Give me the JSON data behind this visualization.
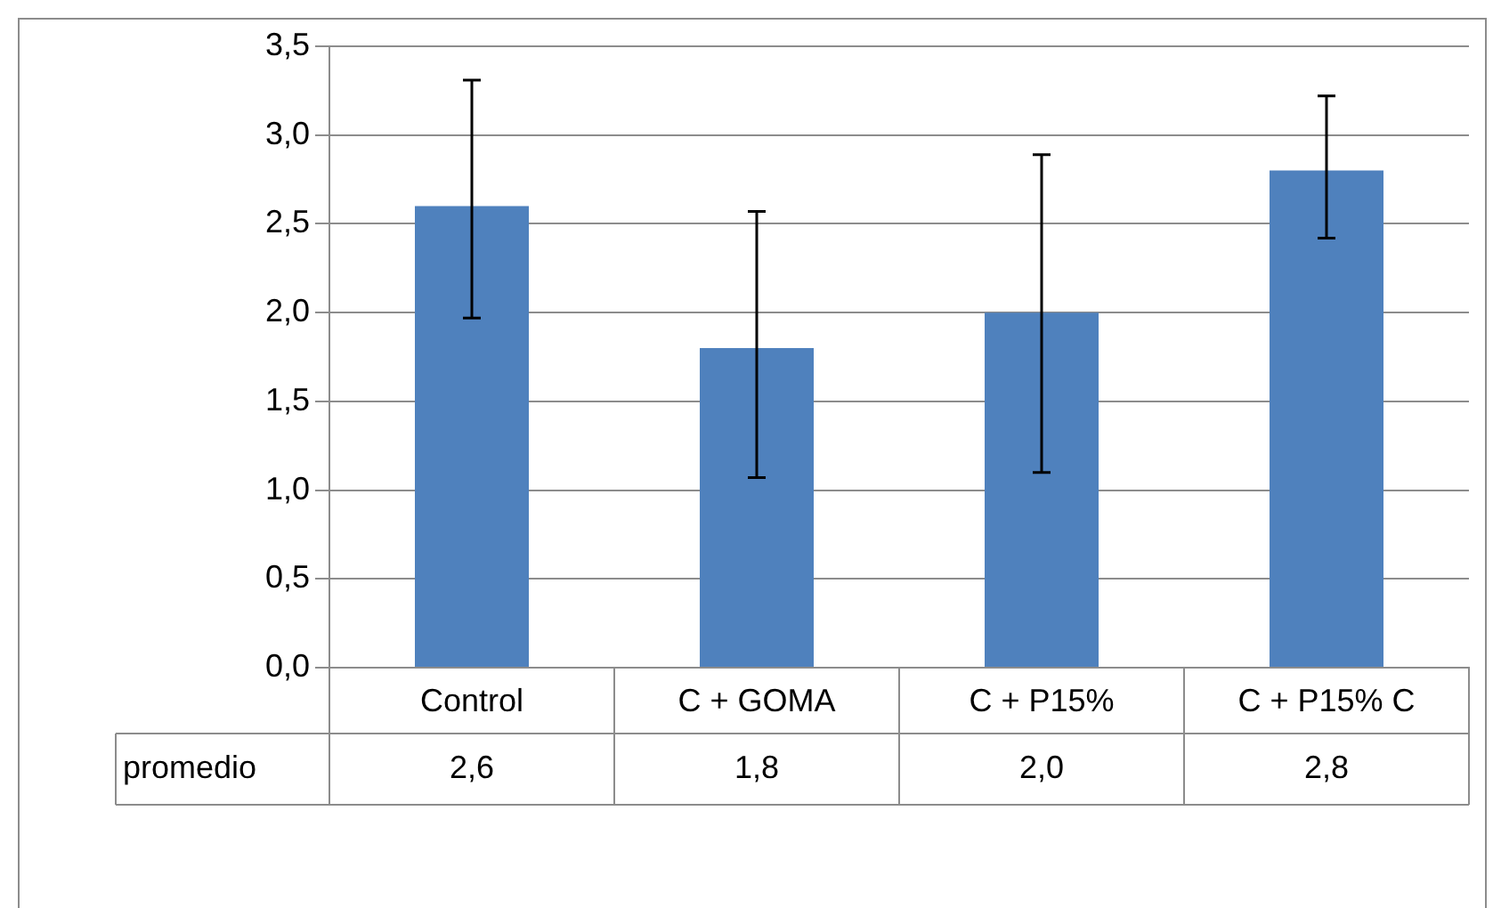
{
  "chart_data": {
    "type": "bar",
    "categories": [
      "Control",
      "C + GOMA",
      "C + P15%",
      "C + P15% C"
    ],
    "series": [
      {
        "name": "promedio",
        "color": "#4f81bd",
        "values": [
          2.6,
          1.8,
          2.0,
          2.8
        ],
        "errors": [
          [
            1.97,
            3.31
          ],
          [
            1.07,
            2.57
          ],
          [
            1.1,
            2.89
          ],
          [
            2.42,
            3.22
          ]
        ],
        "value_labels": [
          "2,6",
          "1,8",
          "2,0",
          "2,8"
        ]
      }
    ],
    "ylim": [
      0,
      3.5
    ],
    "yticks": [
      {
        "value": 0,
        "label": "0,0"
      },
      {
        "value": 0.5,
        "label": "0,5"
      },
      {
        "value": 1,
        "label": "1,0"
      },
      {
        "value": 1.5,
        "label": "1,5"
      },
      {
        "value": 2,
        "label": "2,0"
      },
      {
        "value": 2.5,
        "label": "2,5"
      },
      {
        "value": 3,
        "label": "3,0"
      },
      {
        "value": 3.5,
        "label": "3,5"
      }
    ],
    "grid": "y",
    "legend": false
  }
}
